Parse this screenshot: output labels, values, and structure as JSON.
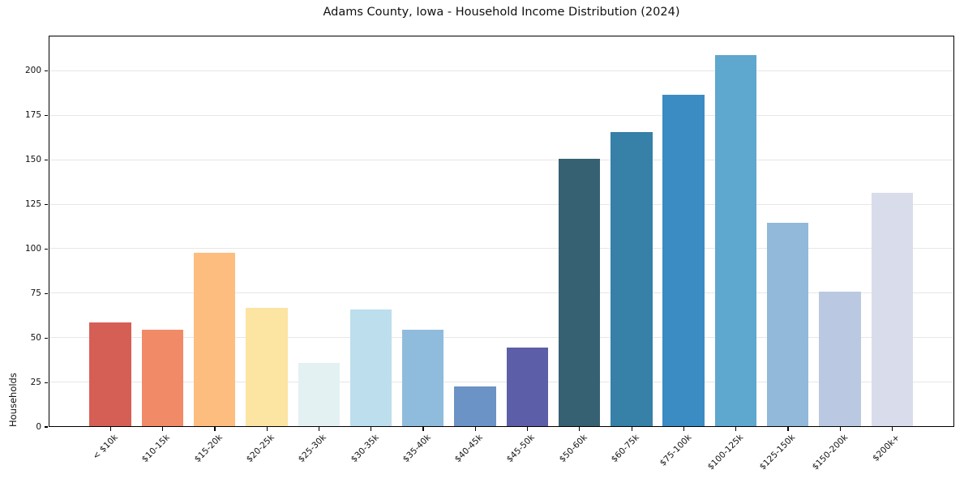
{
  "chart_data": {
    "type": "bar",
    "title": "Adams County, Iowa - Household Income Distribution (2024)",
    "xlabel": "",
    "ylabel": "Households",
    "categories": [
      "< $10k",
      "$10-15k",
      "$15-20k",
      "$20-25k",
      "$25-30k",
      "$30-35k",
      "$35-40k",
      "$40-45k",
      "$45-50k",
      "$50-60k",
      "$60-75k",
      "$75-100k",
      "$100-125k",
      "$125-150k",
      "$150-200k",
      "$200k+"
    ],
    "values": [
      59,
      55,
      98,
      67,
      36,
      66,
      55,
      23,
      45,
      151,
      166,
      187,
      209,
      115,
      76,
      132
    ],
    "bar_colors": [
      "#d65f55",
      "#f18a66",
      "#fdbd7e",
      "#fce4a2",
      "#e4f1f3",
      "#bddeec",
      "#8fbcdc",
      "#6b93c5",
      "#5c5fa8",
      "#366173",
      "#3780a8",
      "#3a8cc3",
      "#5ea7cf",
      "#92b8da",
      "#bac9e1",
      "#d9dcea"
    ],
    "yticks": [
      0,
      25,
      50,
      75,
      100,
      125,
      150,
      175,
      200
    ],
    "ylim": [
      0,
      220
    ],
    "grid": "horizontal",
    "gridline_color": "#e7e7e7",
    "axis_color": "#000000",
    "background_color": "#ffffff",
    "legend": "none",
    "xtick_rotation_deg": 45
  }
}
